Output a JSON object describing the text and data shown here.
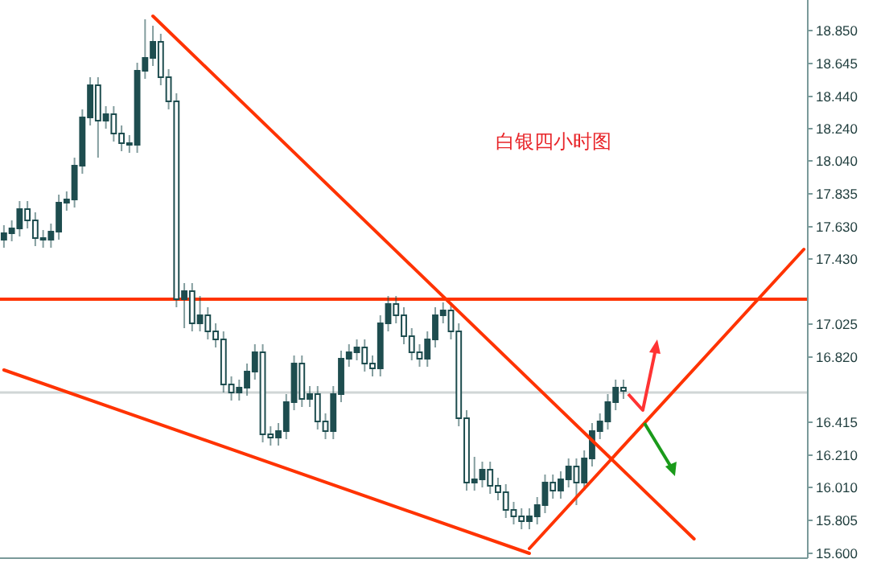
{
  "chart_data": {
    "type": "candlestick",
    "title": "白银四小时图",
    "color": "#1e4d4f",
    "categories": [
      null,
      null,
      null,
      null,
      null,
      null,
      null,
      null,
      null,
      null,
      null,
      null,
      null,
      null,
      null,
      null,
      null,
      null,
      null,
      null,
      null,
      null,
      null,
      null,
      null,
      null,
      null,
      null,
      null,
      null,
      null,
      null,
      null,
      null,
      null,
      null,
      null,
      null,
      null,
      null,
      null,
      null,
      null,
      null,
      null,
      null,
      null,
      null,
      null,
      null,
      null,
      null,
      null,
      null,
      null,
      null,
      null,
      null,
      null,
      null,
      null,
      null,
      null,
      null,
      null,
      null,
      null,
      null,
      null,
      null,
      null,
      null,
      null,
      null,
      null,
      null,
      null,
      null,
      null,
      null,
      null,
      null,
      null,
      null,
      null,
      null,
      null,
      null,
      null,
      null,
      null,
      null,
      null,
      null,
      null,
      null,
      null,
      null,
      null,
      null,
      null,
      null,
      null
    ],
    "ohlc": [
      [
        17.55,
        17.64,
        17.5,
        17.59
      ],
      [
        17.59,
        17.67,
        17.54,
        17.62
      ],
      [
        17.62,
        17.79,
        17.57,
        17.74
      ],
      [
        17.74,
        17.79,
        17.62,
        17.67
      ],
      [
        17.67,
        17.72,
        17.51,
        17.56
      ],
      [
        17.56,
        17.61,
        17.5,
        17.55
      ],
      [
        17.55,
        17.65,
        17.5,
        17.6
      ],
      [
        17.6,
        17.83,
        17.55,
        17.78
      ],
      [
        17.78,
        17.85,
        17.73,
        17.8
      ],
      [
        17.8,
        18.06,
        17.75,
        18.01
      ],
      [
        18.01,
        18.36,
        17.96,
        18.31
      ],
      [
        18.31,
        18.56,
        18.26,
        18.51
      ],
      [
        18.51,
        18.56,
        18.06,
        18.29
      ],
      [
        18.29,
        18.38,
        18.24,
        18.33
      ],
      [
        18.33,
        18.38,
        18.16,
        18.21
      ],
      [
        18.21,
        18.26,
        18.1,
        18.15
      ],
      [
        18.15,
        18.2,
        18.09,
        18.14
      ],
      [
        18.14,
        18.65,
        18.09,
        18.6
      ],
      [
        18.6,
        18.92,
        18.55,
        18.68
      ],
      [
        18.68,
        18.88,
        18.63,
        18.78
      ],
      [
        18.78,
        18.83,
        18.51,
        18.56
      ],
      [
        18.56,
        18.61,
        18.36,
        18.41
      ],
      [
        18.41,
        18.46,
        17.13,
        17.18
      ],
      [
        17.18,
        17.28,
        17.0,
        17.23
      ],
      [
        17.23,
        17.28,
        16.98,
        17.03
      ],
      [
        17.03,
        17.2,
        16.98,
        17.08
      ],
      [
        17.08,
        17.13,
        16.93,
        16.98
      ],
      [
        16.98,
        17.03,
        16.88,
        16.93
      ],
      [
        16.93,
        16.98,
        16.6,
        16.65
      ],
      [
        16.65,
        16.7,
        16.55,
        16.6
      ],
      [
        16.6,
        16.68,
        16.55,
        16.63
      ],
      [
        16.63,
        16.78,
        16.58,
        16.73
      ],
      [
        16.73,
        16.9,
        16.68,
        16.85
      ],
      [
        16.85,
        16.9,
        16.29,
        16.34
      ],
      [
        16.34,
        16.39,
        16.27,
        16.32
      ],
      [
        16.32,
        16.41,
        16.27,
        16.36
      ],
      [
        16.36,
        16.59,
        16.31,
        16.54
      ],
      [
        16.54,
        16.83,
        16.49,
        16.78
      ],
      [
        16.78,
        16.83,
        16.51,
        16.56
      ],
      [
        16.56,
        16.64,
        16.51,
        16.59
      ],
      [
        16.59,
        16.64,
        16.37,
        16.42
      ],
      [
        16.42,
        16.47,
        16.31,
        16.36
      ],
      [
        16.36,
        16.64,
        16.31,
        16.59
      ],
      [
        16.59,
        16.86,
        16.54,
        16.81
      ],
      [
        16.81,
        16.9,
        16.76,
        16.85
      ],
      [
        16.85,
        16.93,
        16.8,
        16.88
      ],
      [
        16.88,
        16.93,
        16.73,
        16.78
      ],
      [
        16.78,
        16.83,
        16.7,
        16.75
      ],
      [
        16.75,
        17.08,
        16.7,
        17.03
      ],
      [
        17.03,
        17.2,
        16.98,
        17.15
      ],
      [
        17.15,
        17.2,
        17.03,
        17.08
      ],
      [
        17.08,
        17.13,
        16.9,
        16.95
      ],
      [
        16.95,
        17.0,
        16.8,
        16.85
      ],
      [
        16.85,
        16.9,
        16.76,
        16.81
      ],
      [
        16.81,
        16.98,
        16.76,
        16.93
      ],
      [
        16.93,
        17.13,
        16.88,
        17.08
      ],
      [
        17.08,
        17.16,
        17.03,
        17.11
      ],
      [
        17.11,
        17.16,
        16.93,
        16.98
      ],
      [
        16.98,
        17.03,
        16.39,
        16.44
      ],
      [
        16.44,
        16.49,
        15.99,
        16.04
      ],
      [
        16.04,
        16.2,
        15.99,
        16.06
      ],
      [
        16.06,
        16.17,
        16.01,
        16.12
      ],
      [
        16.12,
        16.17,
        15.97,
        16.02
      ],
      [
        16.02,
        16.07,
        15.93,
        15.98
      ],
      [
        15.98,
        16.03,
        15.82,
        15.87
      ],
      [
        15.87,
        15.92,
        15.78,
        15.83
      ],
      [
        15.83,
        15.88,
        15.75,
        15.8
      ],
      [
        15.8,
        15.88,
        15.75,
        15.83
      ],
      [
        15.83,
        15.95,
        15.78,
        15.9
      ],
      [
        15.9,
        16.09,
        15.85,
        16.04
      ],
      [
        16.04,
        16.09,
        15.94,
        15.99
      ],
      [
        15.99,
        16.11,
        15.94,
        16.06
      ],
      [
        16.06,
        16.19,
        16.01,
        16.14
      ],
      [
        16.14,
        16.19,
        15.9,
        16.04
      ],
      [
        16.04,
        16.24,
        15.99,
        16.19
      ],
      [
        16.19,
        16.41,
        16.14,
        16.36
      ],
      [
        16.36,
        16.47,
        16.31,
        16.42
      ],
      [
        16.42,
        16.59,
        16.37,
        16.54
      ],
      [
        16.54,
        16.68,
        16.49,
        16.63
      ],
      [
        16.63,
        16.68,
        16.56,
        16.61
      ],
      null,
      null,
      null,
      null,
      null,
      null,
      null,
      null,
      null,
      null,
      null,
      null,
      null,
      null,
      null,
      null,
      null,
      null,
      null,
      null,
      null,
      null,
      null
    ],
    "series": [
      {
        "type": "line",
        "values": [
          null,
          null,
          null,
          null,
          null,
          null,
          null,
          null,
          null,
          null,
          null,
          null,
          null,
          null,
          null,
          null,
          null,
          null,
          null,
          18.94,
          null,
          null,
          null,
          null,
          null,
          null,
          null,
          null,
          null,
          null,
          null,
          null,
          null,
          null,
          null,
          null,
          null,
          null,
          null,
          null,
          null,
          null,
          null,
          null,
          null,
          null,
          null,
          null,
          null,
          null,
          null,
          null,
          null,
          null,
          null,
          null,
          null,
          null,
          null,
          null,
          null,
          null,
          null,
          null,
          null,
          null,
          null,
          null,
          null,
          null,
          null,
          null,
          null,
          null,
          null,
          null,
          null,
          null,
          null,
          null,
          null,
          null,
          null,
          null,
          null,
          null,
          null,
          null,
          15.69,
          null,
          null,
          null,
          null,
          null,
          null,
          null,
          null,
          null,
          null,
          null,
          null,
          null,
          null
        ],
        "color": "#ff3300"
      },
      {
        "type": "line",
        "values": [
          16.74,
          null,
          null,
          null,
          null,
          null,
          null,
          null,
          null,
          null,
          null,
          null,
          null,
          null,
          null,
          null,
          null,
          null,
          null,
          null,
          null,
          null,
          null,
          null,
          null,
          null,
          null,
          null,
          null,
          null,
          null,
          null,
          null,
          null,
          null,
          null,
          null,
          null,
          null,
          null,
          null,
          null,
          null,
          null,
          null,
          null,
          null,
          null,
          null,
          null,
          null,
          null,
          null,
          null,
          null,
          null,
          null,
          null,
          null,
          null,
          null,
          null,
          null,
          null,
          null,
          null,
          null,
          15.6,
          null,
          null,
          null,
          null,
          null,
          null,
          null,
          null,
          null,
          null,
          null,
          null,
          null,
          null,
          null,
          null,
          null,
          null,
          null,
          null,
          null,
          null,
          null,
          null,
          null,
          null,
          null,
          null,
          null,
          null,
          null,
          null,
          null,
          null,
          null
        ],
        "color": "#ff3300"
      },
      {
        "type": "line",
        "values": [
          null,
          null,
          null,
          null,
          null,
          null,
          null,
          null,
          null,
          null,
          null,
          null,
          null,
          null,
          null,
          null,
          null,
          null,
          null,
          null,
          null,
          null,
          null,
          null,
          null,
          null,
          null,
          null,
          null,
          null,
          null,
          null,
          null,
          null,
          null,
          null,
          null,
          null,
          null,
          null,
          null,
          null,
          null,
          null,
          null,
          null,
          null,
          null,
          null,
          null,
          null,
          null,
          null,
          null,
          null,
          null,
          null,
          null,
          null,
          null,
          null,
          null,
          null,
          null,
          null,
          null,
          null,
          15.63,
          null,
          null,
          null,
          null,
          null,
          null,
          null,
          null,
          null,
          null,
          null,
          null,
          null,
          null,
          null,
          null,
          null,
          null,
          null,
          null,
          null,
          null,
          null,
          null,
          null,
          null,
          null,
          null,
          null,
          null,
          null,
          null,
          null,
          null,
          17.49
        ],
        "color": "#ff3300"
      }
    ],
    "ref_lines": [
      {
        "axis": "y",
        "value": 17.18,
        "color": "#ff3300"
      },
      {
        "axis": "y",
        "value": 16.6,
        "color": "#d0d6d6"
      }
    ],
    "ylim": [
      15.57,
      19.04
    ],
    "yticks": [
      {
        "value": 15.6,
        "label": "15.600"
      },
      {
        "value": 15.805,
        "label": "15.805"
      },
      {
        "value": 16.01,
        "label": "16.010"
      },
      {
        "value": 16.21,
        "label": "16.210"
      },
      {
        "value": 16.415,
        "label": "16.415"
      },
      {
        "value": 16.82,
        "label": "16.820"
      },
      {
        "value": 17.025,
        "label": "17.025"
      },
      {
        "value": 17.43,
        "label": "17.430"
      },
      {
        "value": 17.63,
        "label": "17.630"
      },
      {
        "value": 17.835,
        "label": "17.835"
      },
      {
        "value": 18.04,
        "label": "18.040"
      },
      {
        "value": 18.24,
        "label": "18.240"
      },
      {
        "value": 18.44,
        "label": "18.440"
      },
      {
        "value": 18.645,
        "label": "18.645"
      },
      {
        "value": 18.85,
        "label": "18.850"
      }
    ],
    "tick_labels": "y"
  }
}
